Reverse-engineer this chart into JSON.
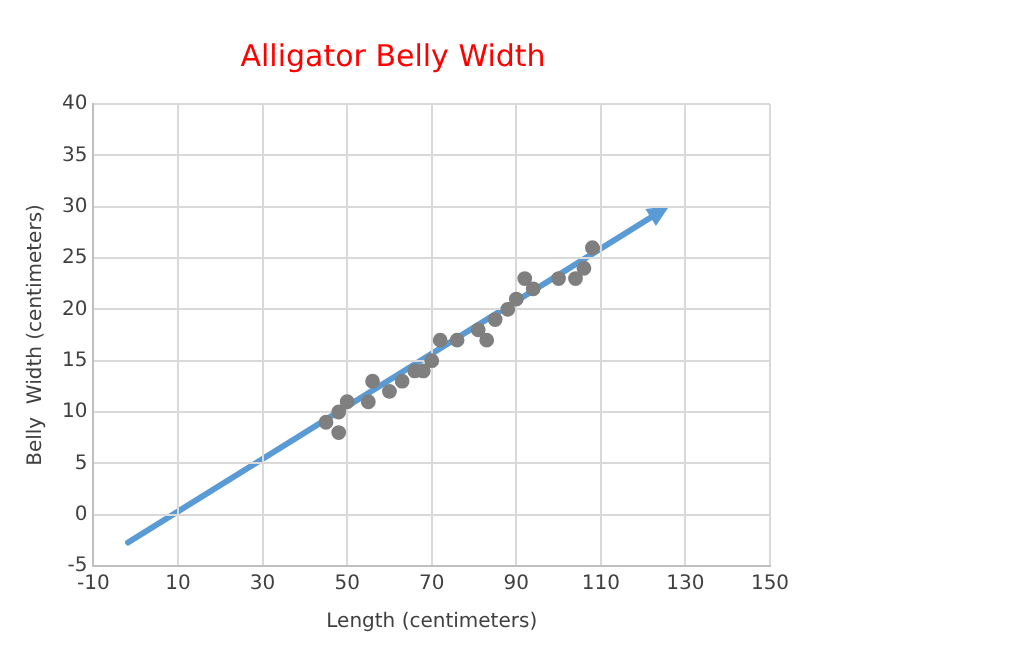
{
  "chart_data": {
    "type": "scatter",
    "title": "Alligator Belly Width",
    "xlabel": "Length (centimeters)",
    "ylabel": "Belly  Width (centimeters)",
    "xlim": [
      -10,
      150
    ],
    "xticks": [
      -10,
      10,
      30,
      50,
      70,
      90,
      110,
      130,
      150
    ],
    "ylim": [
      -5,
      40
    ],
    "yticks": [
      -5,
      0,
      5,
      10,
      15,
      20,
      25,
      30,
      35,
      40
    ],
    "grid": true,
    "marker": "circle",
    "series": [
      {
        "color": "#7f7f7f",
        "x": [
          45,
          48,
          48,
          50,
          55,
          56,
          60,
          63,
          66,
          68,
          70,
          72,
          76,
          81,
          83,
          85,
          88,
          90,
          92,
          94,
          100,
          104,
          106,
          108
        ],
        "values": [
          9,
          8,
          10,
          11,
          11,
          13,
          12,
          13,
          14,
          14,
          15,
          17,
          17,
          18,
          17,
          19,
          20,
          21,
          23,
          22,
          23,
          23,
          24,
          26
        ]
      }
    ]
  }
}
